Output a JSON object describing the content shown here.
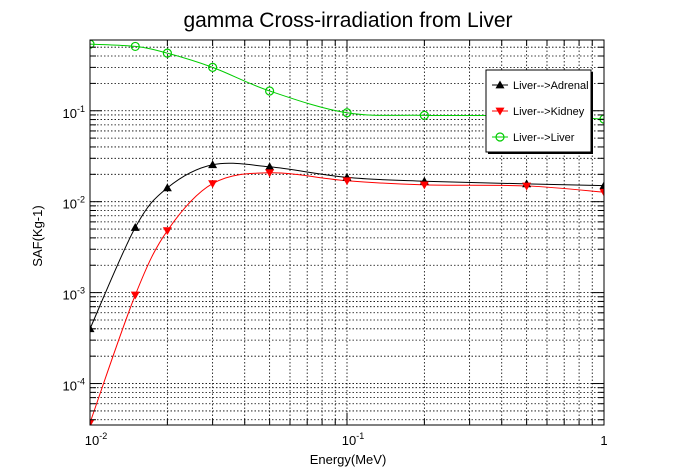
{
  "chart_data": {
    "type": "line",
    "title": "gamma Cross-irradiation from Liver",
    "xlabel": "Energy(MeV)",
    "ylabel": "SAF(Kg-1)",
    "x_scale": "log",
    "y_scale": "log",
    "xlim": [
      0.01,
      1
    ],
    "ylim": [
      3.5e-05,
      0.6
    ],
    "grid": true,
    "legend_position": "top-right",
    "x_ticks": [
      {
        "value": 0.01,
        "base": "10",
        "exp": "-2"
      },
      {
        "value": 0.1,
        "base": "10",
        "exp": "-1"
      },
      {
        "value": 1,
        "base": "1",
        "exp": ""
      }
    ],
    "y_ticks": [
      {
        "value": 0.0001,
        "base": "10",
        "exp": "-4"
      },
      {
        "value": 0.001,
        "base": "10",
        "exp": "-3"
      },
      {
        "value": 0.01,
        "base": "10",
        "exp": "-2"
      },
      {
        "value": 0.1,
        "base": "10",
        "exp": "-1"
      }
    ],
    "series": [
      {
        "name": "Liver-->Adrenal",
        "color": "#000000",
        "marker": "triangle-up",
        "x": [
          0.01,
          0.015,
          0.02,
          0.03,
          0.05,
          0.1,
          0.2,
          0.5,
          1.0
        ],
        "y": [
          0.0004,
          0.0052,
          0.0142,
          0.0255,
          0.0242,
          0.0185,
          0.0168,
          0.0157,
          0.015
        ]
      },
      {
        "name": "Liver-->Kidney",
        "color": "#ff0000",
        "marker": "triangle-down",
        "x": [
          0.01,
          0.015,
          0.02,
          0.03,
          0.05,
          0.1,
          0.2,
          0.5,
          1.0
        ],
        "y": [
          3.7e-05,
          0.00094,
          0.0048,
          0.0158,
          0.0208,
          0.017,
          0.0153,
          0.0149,
          0.0127
        ]
      },
      {
        "name": "Liver-->Liver",
        "color": "#00cc00",
        "marker": "circle-open",
        "x": [
          0.01,
          0.015,
          0.02,
          0.03,
          0.05,
          0.1,
          0.2,
          0.5,
          1.0
        ],
        "y": [
          0.54,
          0.51,
          0.43,
          0.3,
          0.165,
          0.095,
          0.089,
          0.088,
          0.081
        ]
      }
    ]
  }
}
